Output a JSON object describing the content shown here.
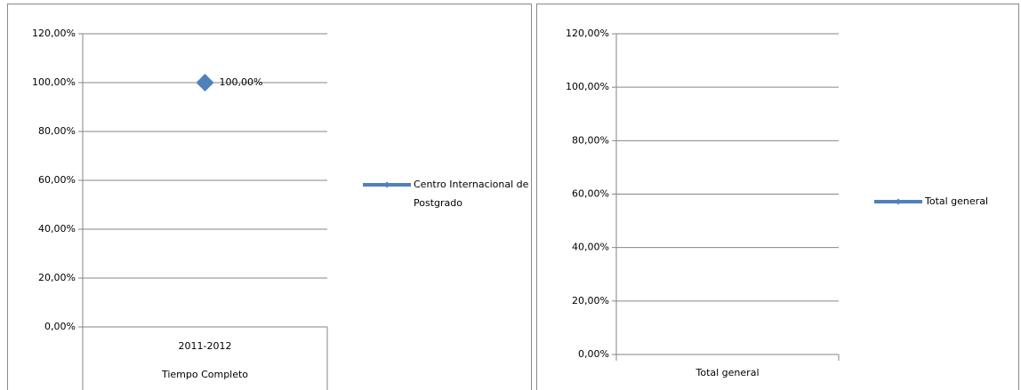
{
  "chart_data": [
    {
      "type": "line",
      "categories": [
        [
          "2011-2012",
          "Tiempo Completo"
        ]
      ],
      "series": [
        {
          "name": "Centro Internacional de Postgrado",
          "color": "#4f81bd",
          "values": [
            100
          ],
          "value_labels": [
            "100,00%"
          ]
        }
      ],
      "ylim": [
        0,
        120
      ],
      "yticks": [
        {
          "value": 0,
          "label": "0,00%"
        },
        {
          "value": 20,
          "label": "20,00%"
        },
        {
          "value": 40,
          "label": "40,00%"
        },
        {
          "value": 60,
          "label": "60,00%"
        },
        {
          "value": 80,
          "label": "80,00%"
        },
        {
          "value": 100,
          "label": "100,00%"
        },
        {
          "value": 120,
          "label": "120,00%"
        }
      ],
      "grid": true,
      "legend": "right"
    },
    {
      "type": "line",
      "categories": [
        "Total general"
      ],
      "series": [
        {
          "name": "Total general",
          "color": "#4f81bd",
          "values": [
            null
          ]
        }
      ],
      "ylim": [
        0,
        120
      ],
      "yticks": [
        {
          "value": 0,
          "label": "0,00%"
        },
        {
          "value": 20,
          "label": "20,00%"
        },
        {
          "value": 40,
          "label": "40,00%"
        },
        {
          "value": 60,
          "label": "60,00%"
        },
        {
          "value": 80,
          "label": "80,00%"
        },
        {
          "value": 100,
          "label": "100,00%"
        },
        {
          "value": 120,
          "label": "120,00%"
        }
      ],
      "grid": true,
      "legend": "right"
    }
  ]
}
